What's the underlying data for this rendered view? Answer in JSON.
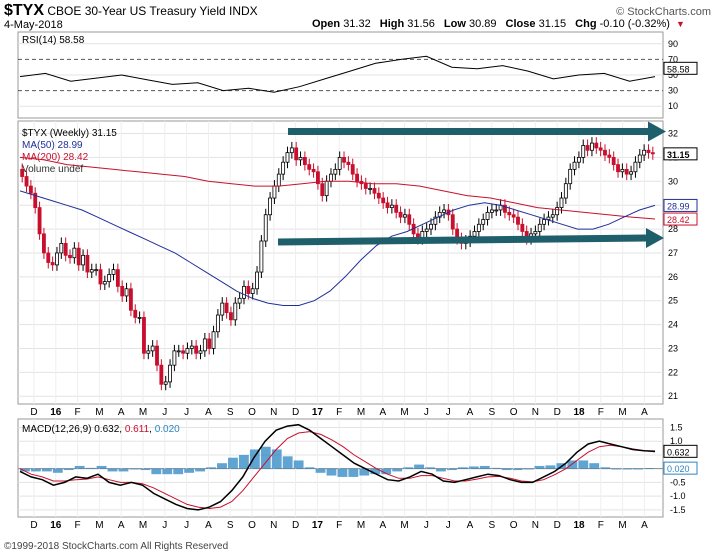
{
  "header": {
    "symbol": "$TYX",
    "name": "CBOE 30-Year US Treasury Yield INDX",
    "date": "4-May-2018",
    "brand": "© StockCharts.com",
    "open_label": "Open",
    "open": "31.32",
    "high_label": "High",
    "high": "31.56",
    "low_label": "Low",
    "low": "30.89",
    "close_label": "Close",
    "close": "31.15",
    "chg_label": "Chg",
    "chg": "-0.10 (-0.32%)"
  },
  "footer": "©1999-2018 StockCharts.com All Rights Reserved",
  "colors": {
    "up": "#000000",
    "down": "#c8102e",
    "ma50": "#1f2f9a",
    "ma200": "#c8102e",
    "arrow": "#1f5f6b",
    "histogram": "#2a86c3",
    "signal": "#c8102e"
  },
  "chart_data": [
    {
      "type": "line",
      "panel": "rsi",
      "label": "RSI(14) 58.58",
      "current": "58.58",
      "ticks": [
        90,
        70,
        50,
        30,
        10
      ],
      "ylim": [
        0,
        100
      ],
      "x": [
        0,
        5,
        10,
        15,
        20,
        25,
        30,
        35,
        40,
        45,
        50,
        55,
        60,
        65,
        70,
        75,
        80,
        85,
        90,
        95,
        100,
        105,
        110,
        115,
        120,
        125
      ],
      "values": [
        48,
        52,
        42,
        46,
        50,
        44,
        38,
        40,
        30,
        33,
        28,
        35,
        45,
        55,
        65,
        70,
        74,
        60,
        58,
        62,
        55,
        45,
        50,
        52,
        42,
        48
      ]
    },
    {
      "type": "candlestick",
      "panel": "price",
      "label": "$TYX (Weekly) 31.15",
      "ma50_label": "MA(50) 28.99",
      "ma200_label": "MA(200) 28.42",
      "volume_label": "Volume undef",
      "last_price": "31.15",
      "ma50_value": "28.99",
      "ma200_value": "28.42",
      "ticks": [
        32,
        31,
        30,
        29,
        28,
        27,
        26,
        25,
        24,
        23,
        22,
        21
      ],
      "ylim": [
        20.8,
        32.4
      ],
      "x_labels": [
        "D",
        "16",
        "F",
        "M",
        "A",
        "M",
        "J",
        "J",
        "A",
        "S",
        "O",
        "N",
        "D",
        "17",
        "F",
        "M",
        "A",
        "M",
        "J",
        "J",
        "A",
        "S",
        "O",
        "N",
        "D",
        "18",
        "F",
        "M",
        "A"
      ],
      "close": [
        30.2,
        29.8,
        29.5,
        28.9,
        27.8,
        27.0,
        26.6,
        26.5,
        27.0,
        27.4,
        26.9,
        26.8,
        27.2,
        26.5,
        26.9,
        26.2,
        26.3,
        26.3,
        25.7,
        25.8,
        26.1,
        26.3,
        25.6,
        25.2,
        25.5,
        24.6,
        24.3,
        24.3,
        22.8,
        22.9,
        23.1,
        22.3,
        21.5,
        21.6,
        22.3,
        22.9,
        22.9,
        22.8,
        23.0,
        23.1,
        22.8,
        22.9,
        23.4,
        23.0,
        23.7,
        24.4,
        24.9,
        24.5,
        24.2,
        24.9,
        25.1,
        25.6,
        25.3,
        25.5,
        26.2,
        27.5,
        28.6,
        29.3,
        29.8,
        30.3,
        30.8,
        31.2,
        31.4,
        30.9,
        31.0,
        30.7,
        30.5,
        30.4,
        29.9,
        29.4,
        30.0,
        30.3,
        30.5,
        31.0,
        30.8,
        30.7,
        30.3,
        30.0,
        29.9,
        29.7,
        29.7,
        29.5,
        29.3,
        29.1,
        28.9,
        29.0,
        28.7,
        28.5,
        28.6,
        28.2,
        27.8,
        27.6,
        27.9,
        28.0,
        28.2,
        28.5,
        28.7,
        28.8,
        28.6,
        28.0,
        27.6,
        27.4,
        27.5,
        27.7,
        27.9,
        28.2,
        28.4,
        28.7,
        28.8,
        28.8,
        29.0,
        28.7,
        28.6,
        28.5,
        28.2,
        27.9,
        27.6,
        27.8,
        27.9,
        28.2,
        28.4,
        28.5,
        28.6,
        28.9,
        29.3,
        29.9,
        30.5,
        30.8,
        31.0,
        31.5,
        31.3,
        31.6,
        31.4,
        31.3,
        31.1,
        31.0,
        30.7,
        30.4,
        30.5,
        30.3,
        30.4,
        30.8,
        31.1,
        31.3,
        31.2,
        31.15
      ],
      "ma50": [
        29.6,
        29.4,
        29.2,
        29.0,
        28.8,
        28.5,
        28.2,
        27.9,
        27.6,
        27.3,
        27.0,
        26.6,
        26.2,
        25.8,
        25.4,
        25.1,
        24.9,
        24.8,
        24.8,
        25.0,
        25.4,
        26.0,
        26.7,
        27.3,
        27.7,
        27.9,
        28.2,
        28.5,
        28.8,
        29.0,
        29.1,
        29.0,
        28.8,
        28.6,
        28.4,
        28.2,
        28.0,
        28.0,
        28.2,
        28.5,
        28.8,
        28.99
      ],
      "ma200": [
        31.0,
        30.9,
        30.7,
        30.6,
        30.5,
        30.4,
        30.3,
        30.2,
        30.0,
        29.9,
        29.8,
        29.8,
        29.9,
        30.0,
        30.0,
        29.9,
        29.9,
        29.8,
        29.6,
        29.4,
        29.3,
        29.1,
        28.9,
        28.8,
        28.7,
        28.6,
        28.5,
        28.42
      ]
    },
    {
      "type": "line",
      "panel": "macd",
      "label": "MACD(12,26,9)",
      "macd_value": "0.632",
      "signal_value": "0.611",
      "hist_value": "0.020",
      "ticks": [
        1.5,
        1.0,
        0.5,
        0.0,
        -0.5,
        -1.0,
        -1.5
      ],
      "tick_labels": [
        "1.5",
        "1.0",
        "0.5",
        "0.0",
        "-0.5",
        "-1.0",
        "-1.5"
      ],
      "ylim": [
        -1.65,
        1.7
      ],
      "x_labels": [
        "D",
        "16",
        "F",
        "M",
        "A",
        "M",
        "J",
        "J",
        "A",
        "S",
        "O",
        "N",
        "D",
        "17",
        "F",
        "M",
        "A",
        "M",
        "J",
        "J",
        "A",
        "S",
        "O",
        "N",
        "D",
        "18",
        "F",
        "M",
        "A"
      ],
      "macd": [
        -0.1,
        -0.3,
        -0.4,
        -0.6,
        -0.5,
        -0.3,
        -0.35,
        -0.2,
        -0.5,
        -0.6,
        -0.5,
        -0.6,
        -0.9,
        -1.1,
        -1.3,
        -1.45,
        -1.5,
        -1.4,
        -1.2,
        -0.8,
        -0.3,
        0.4,
        1.0,
        1.4,
        1.55,
        1.6,
        1.4,
        1.1,
        0.8,
        0.5,
        0.2,
        0.0,
        -0.2,
        -0.4,
        -0.45,
        -0.3,
        -0.1,
        -0.2,
        -0.45,
        -0.5,
        -0.4,
        -0.3,
        -0.2,
        -0.25,
        -0.4,
        -0.5,
        -0.5,
        -0.3,
        -0.1,
        0.2,
        0.6,
        0.9,
        1.0,
        0.9,
        0.8,
        0.7,
        0.65,
        0.632
      ],
      "signal": [
        0.0,
        -0.2,
        -0.3,
        -0.45,
        -0.45,
        -0.4,
        -0.38,
        -0.3,
        -0.4,
        -0.5,
        -0.5,
        -0.55,
        -0.7,
        -0.9,
        -1.1,
        -1.3,
        -1.4,
        -1.45,
        -1.4,
        -1.2,
        -0.8,
        -0.3,
        0.2,
        0.7,
        1.1,
        1.3,
        1.35,
        1.25,
        1.05,
        0.8,
        0.5,
        0.25,
        0.0,
        -0.2,
        -0.35,
        -0.35,
        -0.25,
        -0.25,
        -0.35,
        -0.45,
        -0.45,
        -0.38,
        -0.3,
        -0.28,
        -0.35,
        -0.45,
        -0.48,
        -0.4,
        -0.22,
        0.0,
        0.3,
        0.6,
        0.8,
        0.85,
        0.8,
        0.72,
        0.66,
        0.611
      ]
    }
  ]
}
